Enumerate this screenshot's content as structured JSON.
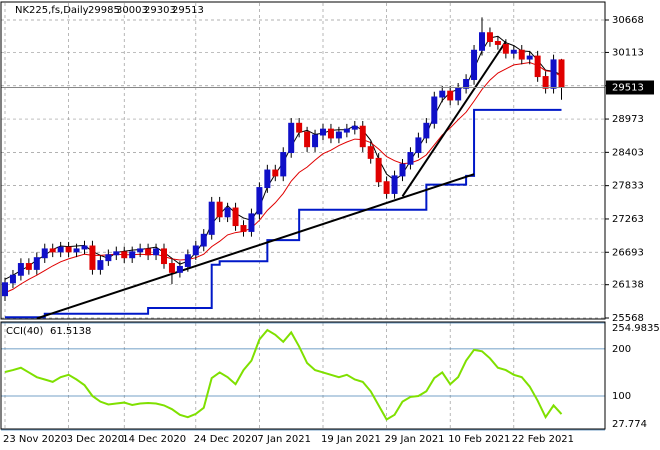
{
  "chart_data": {
    "type": "candlestick",
    "title": "NK225,fs,Daily",
    "categories": [
      "23 Nov 2020",
      null,
      null,
      null,
      null,
      null,
      null,
      null,
      "3 Dec 2020",
      null,
      null,
      null,
      null,
      null,
      null,
      "14 Dec 2020",
      null,
      null,
      null,
      null,
      null,
      null,
      null,
      null,
      "24 Dec 2020",
      null,
      null,
      null,
      null,
      null,
      null,
      null,
      "7 Jan 2021",
      null,
      null,
      null,
      null,
      null,
      null,
      null,
      "19 Jan 2021",
      null,
      null,
      null,
      null,
      null,
      null,
      null,
      "29 Jan 2021",
      null,
      null,
      null,
      null,
      null,
      null,
      null,
      "10 Feb 2021",
      null,
      null,
      null,
      null,
      null,
      null,
      null,
      "22 Feb 2021",
      null,
      null,
      null,
      null,
      null,
      null
    ],
    "open": [
      25950,
      26170,
      26300,
      26500,
      26400,
      26600,
      26750,
      26700,
      26780,
      26700,
      26750,
      26800,
      26400,
      26550,
      26650,
      26700,
      26600,
      26700,
      26750,
      26650,
      26750,
      26500,
      26350,
      26450,
      26650,
      26800,
      27000,
      27550,
      27300,
      27450,
      27150,
      27050,
      27350,
      27800,
      28100,
      28000,
      28400,
      28900,
      28750,
      28500,
      28700,
      28800,
      28650,
      28750,
      28800,
      28850,
      28500,
      28300,
      27900,
      27700,
      28000,
      28200,
      28400,
      28650,
      28900,
      29350,
      29450,
      29300,
      29500,
      29650,
      30150,
      30450,
      30300,
      30250,
      30100,
      30150,
      30000,
      30050,
      29700,
      29500,
      29985
    ],
    "high": [
      26260,
      26390,
      26590,
      26590,
      26690,
      26840,
      26840,
      26870,
      26870,
      26840,
      26890,
      26890,
      26640,
      26740,
      26790,
      26790,
      26790,
      26840,
      26840,
      26840,
      26840,
      26590,
      26540,
      26740,
      26890,
      27090,
      27640,
      27640,
      27540,
      27540,
      27240,
      27440,
      27890,
      28190,
      28190,
      28490,
      28990,
      28990,
      28840,
      28790,
      28890,
      28890,
      28840,
      28890,
      28940,
      28940,
      28590,
      28390,
      27990,
      28090,
      28290,
      28490,
      28740,
      28990,
      29440,
      29540,
      29540,
      29590,
      29740,
      30240,
      30714,
      30540,
      30390,
      30340,
      30240,
      30240,
      30140,
      30140,
      29790,
      30075,
      30003
    ],
    "low": [
      25860,
      26080,
      26210,
      26310,
      26310,
      26510,
      26610,
      26610,
      26610,
      26610,
      26660,
      26310,
      26310,
      26460,
      26560,
      26510,
      26510,
      26610,
      26560,
      26560,
      26410,
      26150,
      26260,
      26360,
      26560,
      26710,
      26910,
      27210,
      27210,
      27060,
      26960,
      26960,
      27260,
      27710,
      27910,
      27910,
      28310,
      28660,
      28410,
      28410,
      28610,
      28560,
      28560,
      28660,
      28710,
      28410,
      28210,
      27810,
      27610,
      27610,
      27910,
      28110,
      28310,
      28560,
      28810,
      29260,
      29210,
      29210,
      29410,
      29560,
      30060,
      30210,
      30160,
      30010,
      30010,
      29910,
      29910,
      29610,
      29410,
      29410,
      29303
    ],
    "close": [
      26170,
      26300,
      26500,
      26400,
      26600,
      26750,
      26700,
      26780,
      26700,
      26750,
      26800,
      26400,
      26550,
      26650,
      26700,
      26600,
      26700,
      26750,
      26650,
      26750,
      26500,
      26350,
      26450,
      26650,
      26800,
      27000,
      27550,
      27300,
      27450,
      27150,
      27050,
      27350,
      27800,
      28100,
      28000,
      28400,
      28900,
      28750,
      28500,
      28700,
      28800,
      28650,
      28750,
      28800,
      28850,
      28500,
      28300,
      27900,
      27700,
      28000,
      28200,
      28400,
      28650,
      28900,
      29350,
      29450,
      29300,
      29500,
      29650,
      30150,
      30450,
      30300,
      30250,
      30100,
      30150,
      30000,
      30050,
      29700,
      29500,
      29985,
      29513
    ],
    "up_color": "#1010c8",
    "down_color": "#e00000",
    "ylim": [
      25568,
      30959
    ],
    "yticks": [
      25568,
      26138,
      26693,
      27263,
      27833,
      28403,
      28973,
      29543,
      30113,
      30668
    ],
    "grid": true,
    "overlays": [
      {
        "color": "#000000",
        "values": [
          26230,
          26300,
          26380,
          26460,
          26560,
          26640,
          26740,
          26800,
          26790,
          26800,
          26810,
          26710,
          26640,
          26590,
          26690,
          26710,
          26730,
          26740,
          26760,
          26780,
          26690,
          26590,
          26490,
          26540,
          26690,
          26880,
          27180,
          27340,
          27490,
          27360,
          27280,
          27240,
          27460,
          27810,
          28030,
          28230,
          28500,
          28740,
          28780,
          28710,
          28730,
          28780,
          28790,
          28790,
          28860,
          28780,
          28610,
          28290,
          28030,
          27930,
          28030,
          28260,
          28480,
          28710,
          29030,
          29290,
          29430,
          29480,
          29540,
          29830,
          30140,
          30360,
          30390,
          30280,
          30230,
          30140,
          30130,
          29980,
          29810,
          29790,
          29730
        ]
      },
      {
        "color": "#e00000",
        "values": [
          26000,
          26060,
          26150,
          26230,
          26300,
          26380,
          26460,
          26530,
          26580,
          26620,
          26660,
          26640,
          26640,
          26650,
          26660,
          26650,
          26650,
          26660,
          26650,
          26660,
          26620,
          26580,
          26560,
          26570,
          26600,
          26660,
          26790,
          26880,
          26990,
          27030,
          27050,
          27110,
          27240,
          27410,
          27540,
          27700,
          27910,
          28060,
          28150,
          28270,
          28380,
          28440,
          28520,
          28580,
          28630,
          28620,
          28570,
          28460,
          28330,
          28260,
          28210,
          28220,
          28270,
          28360,
          28530,
          28700,
          28820,
          28960,
          29090,
          29280,
          29480,
          29640,
          29760,
          29830,
          29900,
          29920,
          29940,
          29890,
          29800,
          29780,
          29700
        ]
      },
      {
        "color": "#0018c8",
        "step": true,
        "values": [
          25580,
          25580,
          25580,
          25580,
          25580,
          25640,
          25640,
          25640,
          25640,
          25640,
          25640,
          25640,
          25640,
          25640,
          25640,
          25640,
          25640,
          25640,
          25740,
          25740,
          25740,
          25740,
          25740,
          25740,
          25740,
          25740,
          26480,
          26540,
          26540,
          26540,
          26540,
          26540,
          26540,
          26900,
          26900,
          26900,
          26900,
          27420,
          27420,
          27420,
          27420,
          27420,
          27420,
          27420,
          27420,
          27420,
          27420,
          27420,
          27420,
          27420,
          27420,
          27420,
          27420,
          27850,
          27850,
          27850,
          27850,
          27850,
          28000,
          29130,
          29130,
          29130,
          29130,
          29130,
          29130,
          29130,
          29130,
          29130,
          29130,
          29130,
          29130
        ]
      }
    ],
    "trendlines": [
      {
        "color": "#000000",
        "start": [
          4,
          25560
        ],
        "end": [
          59,
          28030
        ]
      },
      {
        "color": "#000000",
        "start": [
          50,
          27650
        ],
        "end": [
          63,
          30300
        ]
      }
    ],
    "cci": {
      "title": "CCI(40)",
      "color": "#7fe000",
      "ylim": [
        27.774,
        254.9835
      ],
      "yticks": [
        {
          "value": 27.774,
          "label": "27.774"
        },
        100,
        200,
        254.9835
      ],
      "values": [
        151,
        155,
        160,
        150,
        140,
        135,
        130,
        140,
        145,
        135,
        123,
        100,
        88,
        82,
        84,
        86,
        81,
        84,
        85,
        84,
        80,
        72,
        60,
        55,
        62,
        75,
        138,
        150,
        140,
        125,
        155,
        175,
        220,
        240,
        230,
        215,
        235,
        205,
        170,
        155,
        150,
        145,
        140,
        145,
        135,
        130,
        110,
        80,
        50,
        60,
        88,
        98,
        100,
        110,
        138,
        150,
        125,
        140,
        175,
        198,
        195,
        180,
        160,
        155,
        145,
        140,
        120,
        90,
        55,
        80,
        61.5138
      ]
    }
  }
}
